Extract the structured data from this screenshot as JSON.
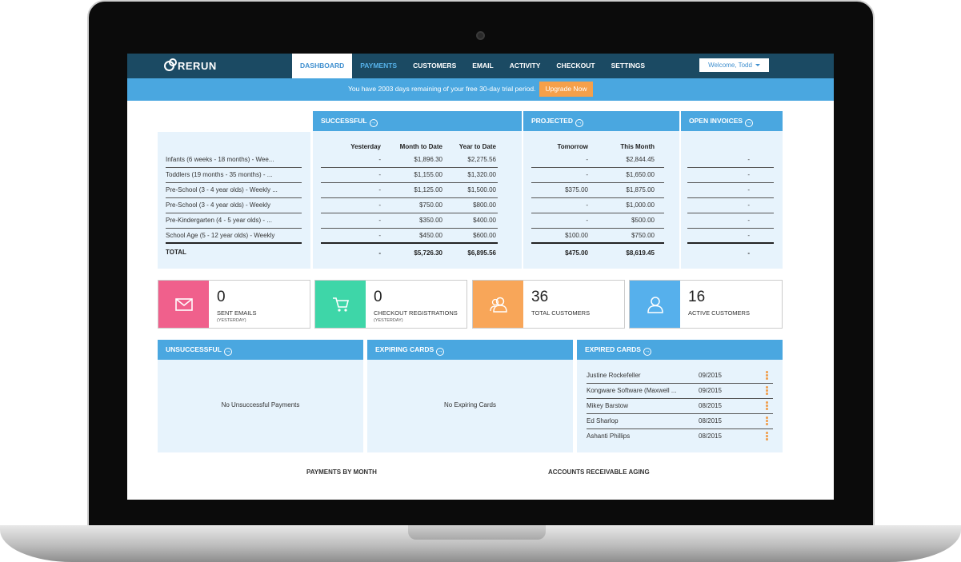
{
  "brand": {
    "name": "RERUN"
  },
  "nav": {
    "items": [
      "DASHBOARD",
      "PAYMENTS",
      "CUSTOMERS",
      "EMAIL",
      "ACTIVITY",
      "CHECKOUT",
      "SETTINGS"
    ],
    "welcome": "Welcome, Todd"
  },
  "trial": {
    "message": "You have 2003 days remaining of your free 30-day trial period.",
    "upgrade_label": "Upgrade Now"
  },
  "summary": {
    "programs": [
      "Infants (6 weeks - 18 months) - Wee...",
      "Toddlers (19 months - 35 months) - ...",
      "Pre-School (3 - 4 year olds) - Weekly ...",
      "Pre-School (3 - 4 year olds) - Weekly",
      "Pre-Kindergarten (4 - 5 year olds) - ...",
      "School Age (5 - 12 year olds) - Weekly"
    ],
    "total_label": "TOTAL",
    "successful": {
      "title": "SUCCESSFUL",
      "headers": [
        "Yesterday",
        "Month to Date",
        "Year to Date"
      ],
      "rows": [
        [
          "-",
          "$1,896.30",
          "$2,275.56"
        ],
        [
          "-",
          "$1,155.00",
          "$1,320.00"
        ],
        [
          "-",
          "$1,125.00",
          "$1,500.00"
        ],
        [
          "-",
          "$750.00",
          "$800.00"
        ],
        [
          "-",
          "$350.00",
          "$400.00"
        ],
        [
          "-",
          "$450.00",
          "$600.00"
        ]
      ],
      "totals": [
        "-",
        "$5,726.30",
        "$6,895.56"
      ]
    },
    "projected": {
      "title": "PROJECTED",
      "headers": [
        "Tomorrow",
        "This Month"
      ],
      "rows": [
        [
          "-",
          "$2,844.45"
        ],
        [
          "-",
          "$1,650.00"
        ],
        [
          "$375.00",
          "$1,875.00"
        ],
        [
          "-",
          "$1,000.00"
        ],
        [
          "-",
          "$500.00"
        ],
        [
          "$100.00",
          "$750.00"
        ]
      ],
      "totals": [
        "$475.00",
        "$8,619.45"
      ]
    },
    "open_invoices": {
      "title": "OPEN INVOICES",
      "rows": [
        "-",
        "-",
        "-",
        "-",
        "-",
        "-"
      ],
      "total": "-"
    }
  },
  "stats": [
    {
      "value": "0",
      "label": "SENT EMAILS",
      "sub": "(YESTERDAY)",
      "color": "#f0608c",
      "icon": "envelope-icon"
    },
    {
      "value": "0",
      "label": "CHECKOUT REGISTRATIONS",
      "sub": "(YESTERDAY)",
      "color": "#3ed6a8",
      "icon": "cart-icon"
    },
    {
      "value": "36",
      "label": "TOTAL CUSTOMERS",
      "sub": "",
      "color": "#f8a659",
      "icon": "users-icon"
    },
    {
      "value": "16",
      "label": "ACTIVE CUSTOMERS",
      "sub": "",
      "color": "#56b0ec",
      "icon": "user-icon"
    }
  ],
  "unsuccessful": {
    "title": "UNSUCCESSFUL",
    "empty": "No Unsuccessful Payments"
  },
  "expiring": {
    "title": "EXPIRING CARDS",
    "empty": "No Expiring Cards"
  },
  "expired": {
    "title": "EXPIRED CARDS",
    "rows": [
      {
        "name": "Justine Rockefeller",
        "date": "09/2015"
      },
      {
        "name": "Kongware Software (Maxwell ...",
        "date": "09/2015"
      },
      {
        "name": "Mikey Barstow",
        "date": "08/2015"
      },
      {
        "name": "Ed Sharlop",
        "date": "08/2015"
      },
      {
        "name": "Ashanti Phillips",
        "date": "08/2015"
      }
    ]
  },
  "footer": {
    "payments_by_month": "PAYMENTS BY MONTH",
    "ar_aging": "ACCOUNTS RECEIVABLE AGING"
  },
  "colors": {
    "navbar": "#1b4a63",
    "accent": "#4aa7e0",
    "panel": "#e7f3fc",
    "upgrade": "#f5a04a"
  }
}
